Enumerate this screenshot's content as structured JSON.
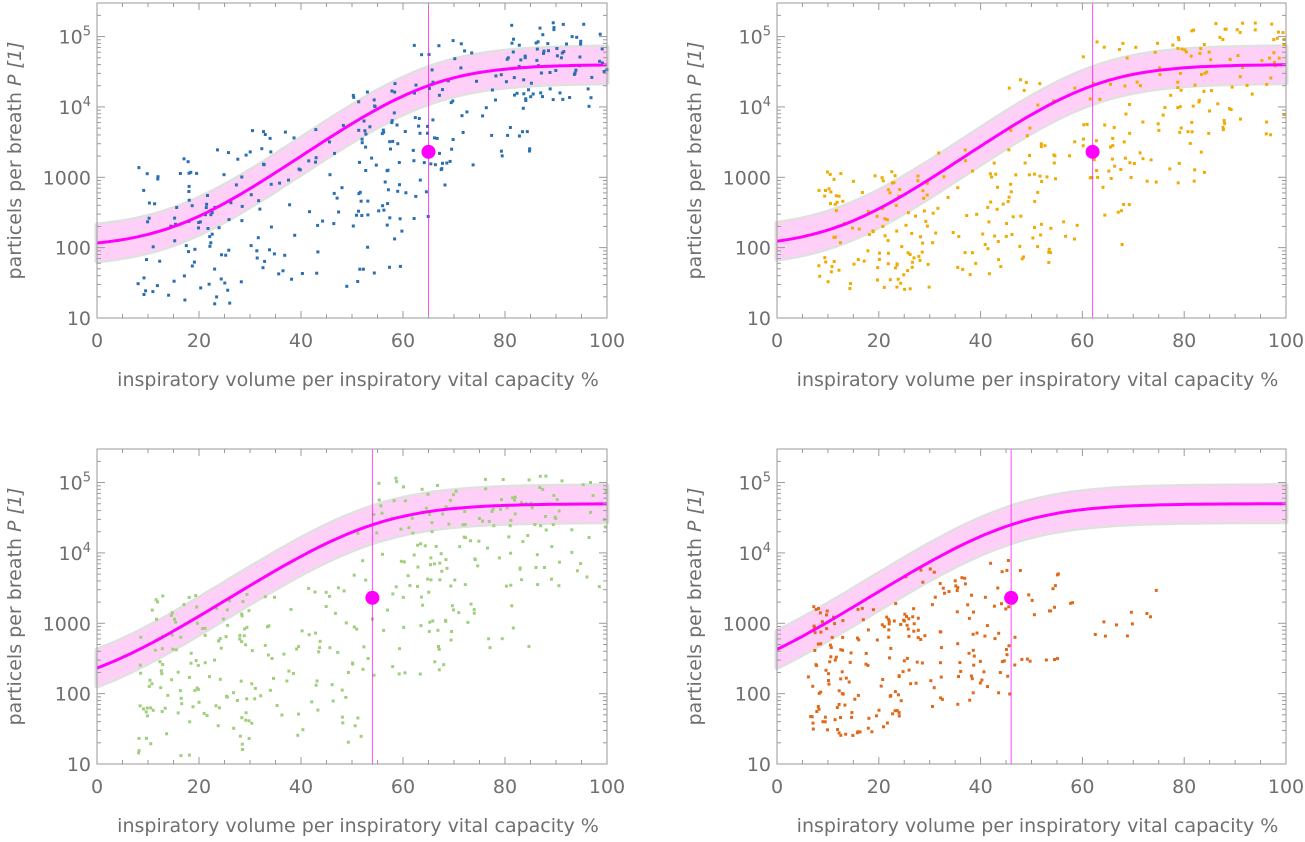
{
  "chart_data": [
    {
      "type": "scatter",
      "xlabel": "inspiratory volume per inspiratory vital capacity %",
      "ylabel": "particels per breath P [1]",
      "ylabel_parts": {
        "text": "particels per breath ",
        "symbol": "P",
        "unit": " [1]"
      },
      "xlim": [
        0,
        100
      ],
      "ylim": [
        10,
        300000
      ],
      "y_scale": "log",
      "x_ticks": [
        "0",
        "20",
        "40",
        "60",
        "80",
        "100"
      ],
      "y_ticks": [
        {
          "value": 10,
          "label": "10"
        },
        {
          "value": 100,
          "label": "100"
        },
        {
          "value": 1000,
          "label": "1000"
        },
        {
          "value": 10000,
          "label": "10",
          "exp": "4"
        },
        {
          "value": 100000,
          "label": "10",
          "exp": "5"
        }
      ],
      "point_color": "#2a6fb0",
      "curve_color": "#ff00ff",
      "band_color": "#ffd0f7",
      "fit": {
        "base": 100,
        "amp": 40000,
        "x0": 65,
        "k": 0.12
      },
      "band_factor": 1.8,
      "marker": {
        "x": 65,
        "y": 2300
      },
      "vline": 65,
      "scatter_seed": 11,
      "scatter_clusters": [
        {
          "n": 90,
          "x": [
            8,
            32
          ],
          "log_y": [
            1.2,
            3.4
          ]
        },
        {
          "n": 70,
          "x": [
            30,
            60
          ],
          "log_y": [
            1.4,
            3.8
          ]
        },
        {
          "n": 60,
          "x": [
            50,
            70
          ],
          "log_y": [
            2.4,
            4.4
          ]
        },
        {
          "n": 60,
          "x": [
            62,
            86
          ],
          "log_y": [
            3.1,
            5.0
          ]
        },
        {
          "n": 70,
          "x": [
            80,
            100
          ],
          "log_y": [
            4.0,
            5.2
          ]
        }
      ]
    },
    {
      "type": "scatter",
      "xlabel": "inspiratory volume per inspiratory vital capacity %",
      "ylabel": "particels per breath P [1]",
      "ylabel_parts": {
        "text": "particels per breath ",
        "symbol": "P",
        "unit": " [1]"
      },
      "xlim": [
        0,
        100
      ],
      "ylim": [
        10,
        300000
      ],
      "y_scale": "log",
      "x_ticks": [
        "0",
        "20",
        "40",
        "60",
        "80",
        "100"
      ],
      "y_ticks": [
        {
          "value": 10,
          "label": "10"
        },
        {
          "value": 100,
          "label": "100"
        },
        {
          "value": 1000,
          "label": "1000"
        },
        {
          "value": 10000,
          "label": "10",
          "exp": "4"
        },
        {
          "value": 100000,
          "label": "10",
          "exp": "5"
        }
      ],
      "point_color": "#f0ab00",
      "curve_color": "#ff00ff",
      "band_color": "#ffd0f7",
      "fit": {
        "base": 100,
        "amp": 40000,
        "x0": 62,
        "k": 0.12
      },
      "band_factor": 1.8,
      "marker": {
        "x": 62,
        "y": 2300
      },
      "vline": 62,
      "scatter_seed": 23,
      "scatter_clusters": [
        {
          "n": 100,
          "x": [
            8,
            30
          ],
          "log_y": [
            1.4,
            3.1
          ]
        },
        {
          "n": 70,
          "x": [
            28,
            55
          ],
          "log_y": [
            1.6,
            3.4
          ]
        },
        {
          "n": 60,
          "x": [
            45,
            70
          ],
          "log_y": [
            2.0,
            4.4
          ]
        },
        {
          "n": 60,
          "x": [
            60,
            85
          ],
          "log_y": [
            2.9,
            5.0
          ]
        },
        {
          "n": 70,
          "x": [
            78,
            100
          ],
          "log_y": [
            3.6,
            5.2
          ]
        }
      ]
    },
    {
      "type": "scatter",
      "xlabel": "inspiratory volume per inspiratory vital capacity %",
      "ylabel": "particels per breath P [1]",
      "ylabel_parts": {
        "text": "particels per breath ",
        "symbol": "P",
        "unit": " [1]"
      },
      "xlim": [
        0,
        100
      ],
      "ylim": [
        10,
        300000
      ],
      "y_scale": "log",
      "x_ticks": [
        "0",
        "20",
        "40",
        "60",
        "80",
        "100"
      ],
      "y_ticks": [
        {
          "value": 10,
          "label": "10"
        },
        {
          "value": 100,
          "label": "100"
        },
        {
          "value": 1000,
          "label": "1000"
        },
        {
          "value": 10000,
          "label": "10",
          "exp": "4"
        },
        {
          "value": 100000,
          "label": "10",
          "exp": "5"
        }
      ],
      "point_color": "#9fcf7c",
      "curve_color": "#ff00ff",
      "band_color": "#ffd0f7",
      "fit": {
        "base": 100,
        "amp": 50000,
        "x0": 54,
        "k": 0.11
      },
      "band_factor": 1.8,
      "marker": {
        "x": 54,
        "y": 2300
      },
      "vline": 54,
      "scatter_seed": 37,
      "scatter_clusters": [
        {
          "n": 110,
          "x": [
            8,
            30
          ],
          "log_y": [
            1.1,
            3.4
          ]
        },
        {
          "n": 70,
          "x": [
            28,
            52
          ],
          "log_y": [
            1.3,
            3.6
          ]
        },
        {
          "n": 80,
          "x": [
            50,
            70
          ],
          "log_y": [
            2.2,
            5.1
          ]
        },
        {
          "n": 60,
          "x": [
            65,
            85
          ],
          "log_y": [
            2.6,
            5.1
          ]
        },
        {
          "n": 50,
          "x": [
            80,
            100
          ],
          "log_y": [
            3.5,
            5.1
          ]
        }
      ]
    },
    {
      "type": "scatter",
      "xlabel": "inspiratory volume per inspiratory vital capacity %",
      "ylabel": "particels per breath P [1]",
      "ylabel_parts": {
        "text": "particels per breath ",
        "symbol": "P",
        "unit": " [1]"
      },
      "xlim": [
        0,
        100
      ],
      "ylim": [
        10,
        300000
      ],
      "y_scale": "log",
      "x_ticks": [
        "0",
        "20",
        "40",
        "60",
        "80",
        "100"
      ],
      "y_ticks": [
        {
          "value": 10,
          "label": "10"
        },
        {
          "value": 100,
          "label": "100"
        },
        {
          "value": 1000,
          "label": "1000"
        },
        {
          "value": 10000,
          "label": "10",
          "exp": "4"
        },
        {
          "value": 100000,
          "label": "10",
          "exp": "5"
        }
      ],
      "point_color": "#e06a1b",
      "curve_color": "#ff00ff",
      "band_color": "#ffd0f7",
      "fit": {
        "base": 110,
        "amp": 50000,
        "x0": 46,
        "k": 0.11
      },
      "band_factor": 1.8,
      "marker": {
        "x": 46,
        "y": 2300
      },
      "vline": 46,
      "scatter_seed": 53,
      "scatter_clusters": [
        {
          "n": 130,
          "x": [
            6,
            26
          ],
          "log_y": [
            1.4,
            3.3
          ]
        },
        {
          "n": 90,
          "x": [
            24,
            46
          ],
          "log_y": [
            1.8,
            3.9
          ]
        },
        {
          "n": 25,
          "x": [
            44,
            56
          ],
          "log_y": [
            2.4,
            3.8
          ]
        },
        {
          "n": 12,
          "x": [
            55,
            76
          ],
          "log_y": [
            2.8,
            3.7
          ]
        }
      ]
    }
  ]
}
